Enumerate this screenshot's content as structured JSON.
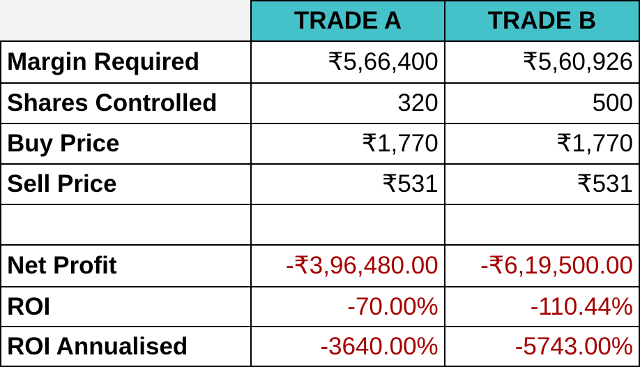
{
  "columns": [
    "TRADE A",
    "TRADE B"
  ],
  "rows": [
    {
      "label": "Margin Required",
      "a": "₹5,66,400",
      "b": "₹5,60,926",
      "negative": false
    },
    {
      "label": "Shares Controlled",
      "a": "320",
      "b": "500",
      "negative": false
    },
    {
      "label": "Buy Price",
      "a": "₹1,770",
      "b": "₹1,770",
      "negative": false
    },
    {
      "label": "Sell Price",
      "a": "₹531",
      "b": "₹531",
      "negative": false
    },
    {
      "label": "",
      "a": "",
      "b": "",
      "negative": false
    },
    {
      "label": "Net Profit",
      "a": "-₹3,96,480.00",
      "b": "-₹6,19,500.00",
      "negative": true
    },
    {
      "label": "ROI",
      "a": "-70.00%",
      "b": "-110.44%",
      "negative": true
    },
    {
      "label": "ROI Annualised",
      "a": "-3640.00%",
      "b": "-5743.00%",
      "negative": true
    }
  ],
  "colors": {
    "header_bg": "#45c2c9",
    "negative_text": "#a50000",
    "corner_bg": "#f2f2f2"
  }
}
